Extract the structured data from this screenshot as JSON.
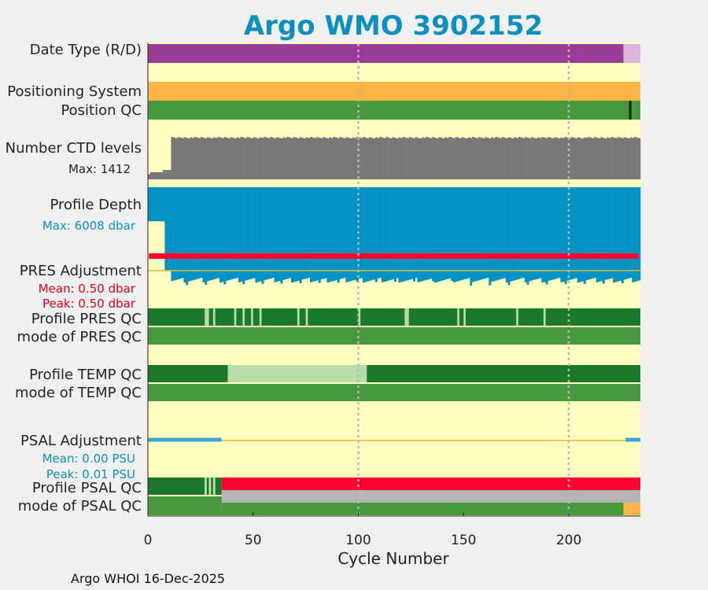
{
  "chart_data": {
    "type": "timeline",
    "title": "Argo WMO 3902152",
    "xlabel": "Cycle Number",
    "xlim": [
      0,
      234
    ],
    "xticks": [
      "0",
      "50",
      "100",
      "150",
      "200"
    ],
    "gridlines_at": [
      100,
      200
    ],
    "footer": "Argo WHOI 16-Dec-2025",
    "colors": {
      "background": "#ffffc0",
      "realtime_purple": "#993c98",
      "delayed_pink": "#dcb4dc",
      "positioning_orange": "#ffb444",
      "qc_good_green": "#48983e",
      "qc_dark_green": "#1a7a2a",
      "qc_light_green": "#b8dcaa",
      "qc_gray": "#b4b4b4",
      "qc_red": "#ff0032",
      "qc_orange": "#ffb444",
      "levels_gray": "#787878",
      "depth_blue": "#0092c3",
      "adjustment_yellow": "#e0b840",
      "psal_line_blue": "#3aa4d6",
      "title_blue": "#0b8fc1",
      "label_blue": "#0b8fc1",
      "label_red": "#e8001c"
    },
    "rows": {
      "date_type": {
        "label": "Date Type (R/D)",
        "segments": [
          {
            "start": 0,
            "end": 226,
            "value": "R"
          },
          {
            "start": 226,
            "end": 234,
            "value": "D"
          }
        ]
      },
      "positioning_system": {
        "label": "Positioning System",
        "segments": [
          {
            "start": 0,
            "end": 234,
            "value": "GPS"
          }
        ]
      },
      "position_qc": {
        "label": "Position QC",
        "segments": [
          {
            "start": 0,
            "end": 234,
            "value": "1"
          }
        ],
        "markers": [
          229
        ]
      },
      "ctd_levels": {
        "label": "Number CTD levels",
        "max_label": "Max: 1412",
        "max": 1412,
        "early_levels": [
          {
            "start": 0,
            "end": 1,
            "value": 160
          },
          {
            "start": 1,
            "end": 7,
            "value": 230
          },
          {
            "start": 7,
            "end": 11,
            "value": 300
          }
        ],
        "plateau": 1360,
        "wiggle": 50
      },
      "profile_depth": {
        "label": "Profile Depth",
        "max_label": "Max: 6008 dbar",
        "max": 6008,
        "shallow_until": 8,
        "shallow_depth": 2000,
        "deep_from": 11,
        "deep_depth": 5600,
        "deep_jitter": 280
      },
      "pres_adjustment": {
        "label": "PRES Adjustment",
        "mean_label": "Mean: 0.50 dbar",
        "peak_label": "Peak: 0.50 dbar",
        "mean": 0.5,
        "peak": 0.5
      },
      "profile_pres_qc": {
        "label": "Profile PRES QC",
        "base": "A",
        "light_cycles": [
          27,
          28,
          31,
          41,
          45,
          49,
          53,
          71,
          75,
          100,
          122,
          123,
          147,
          150,
          175,
          188
        ]
      },
      "mode_pres_qc": {
        "label": "mode of PRES QC",
        "segments": [
          {
            "start": 0,
            "end": 234,
            "value": "1"
          }
        ]
      },
      "profile_temp_qc": {
        "label": "Profile TEMP QC",
        "segments": [
          {
            "start": 0,
            "end": 38,
            "value": "A"
          },
          {
            "start": 38,
            "end": 104,
            "value": "B"
          },
          {
            "start": 104,
            "end": 234,
            "value": "A"
          }
        ]
      },
      "mode_temp_qc": {
        "label": "mode of TEMP QC",
        "segments": [
          {
            "start": 0,
            "end": 234,
            "value": "1"
          }
        ]
      },
      "psal_adjustment": {
        "label": "PSAL Adjustment",
        "mean_label": "Mean: 0.00 PSU",
        "peak_label": "Peak: 0.01 PSU",
        "mean": 0.0,
        "peak": 0.01,
        "adjusted_ranges": [
          [
            0,
            35
          ],
          [
            227,
            234
          ]
        ]
      },
      "profile_psal_qc": {
        "label": "Profile PSAL QC",
        "segments": [
          {
            "start": 0,
            "end": 27,
            "value": "A"
          },
          {
            "start": 27,
            "end": 28,
            "value": "B"
          },
          {
            "start": 28,
            "end": 29,
            "value": "A"
          },
          {
            "start": 29,
            "end": 30,
            "value": "B"
          },
          {
            "start": 30,
            "end": 31,
            "value": "A"
          },
          {
            "start": 31,
            "end": 32,
            "value": "B"
          },
          {
            "start": 32,
            "end": 35,
            "value": "A"
          },
          {
            "start": 35,
            "end": 234,
            "value": "F"
          }
        ]
      },
      "mode_psal_qc": {
        "label": "mode of PSAL QC",
        "segments": [
          {
            "start": 0,
            "end": 35,
            "value": "1"
          },
          {
            "start": 35,
            "end": 226,
            "value": "1"
          },
          {
            "start": 226,
            "end": 234,
            "value": "3"
          }
        ],
        "gray_overlay": [
          35,
          234
        ]
      }
    }
  }
}
